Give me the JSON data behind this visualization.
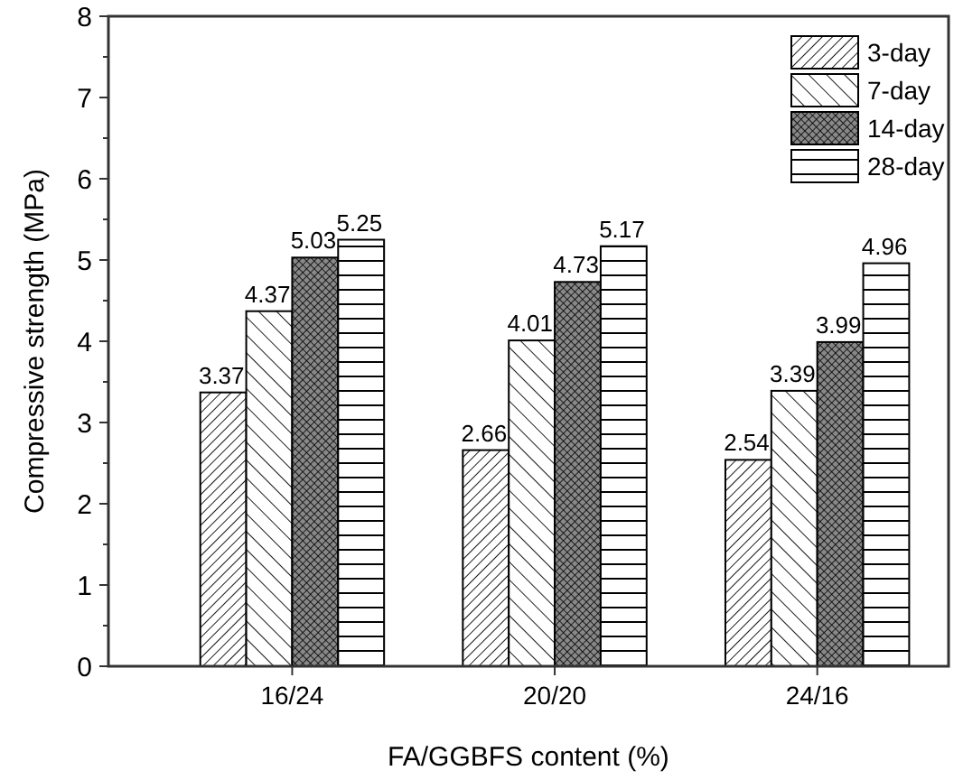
{
  "chart_data": {
    "type": "bar",
    "xlabel": "FA/GGBFS content (%)",
    "ylabel": "Compressive strength (MPa)",
    "categories": [
      "16/24",
      "20/20",
      "24/16"
    ],
    "series": [
      {
        "name": "3-day",
        "color": "#000000",
        "values": [
          3.37,
          2.66,
          2.54
        ]
      },
      {
        "name": "7-day",
        "color": "#000000",
        "values": [
          4.37,
          4.01,
          3.39
        ]
      },
      {
        "name": "14-day",
        "color": "#000000",
        "values": [
          5.03,
          4.73,
          3.99
        ]
      },
      {
        "name": "28-day",
        "color": "#000000",
        "values": [
          5.25,
          5.17,
          4.96
        ]
      }
    ],
    "ylim": [
      0,
      8
    ],
    "yticks": [
      0,
      1,
      2,
      3,
      4,
      5,
      6,
      7,
      8
    ],
    "data_labels": true,
    "legend": "top right",
    "grid": false
  }
}
